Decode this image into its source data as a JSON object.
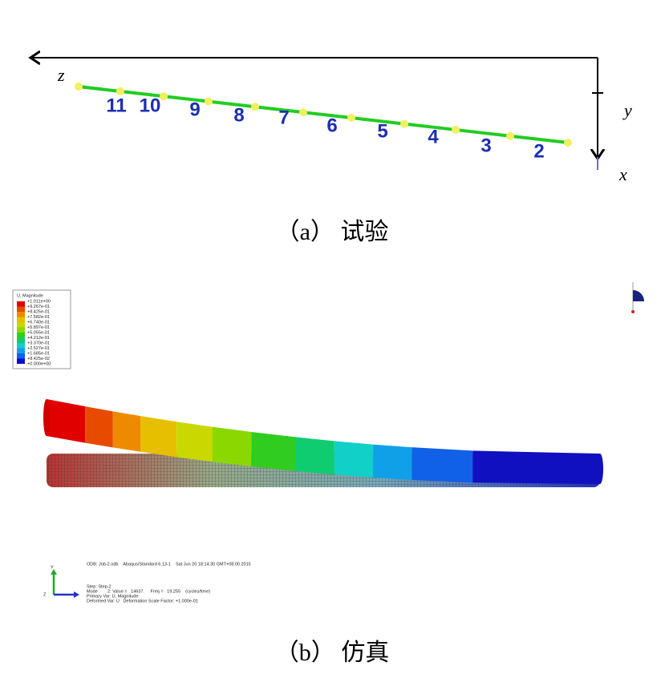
{
  "panel_a": {
    "axis_labels": [
      "z",
      "y",
      "x"
    ],
    "point_labels": [
      "11",
      "10",
      "9",
      "8",
      "7",
      "6",
      "5",
      "4",
      "3",
      "2"
    ],
    "caption": "（a） 试验"
  },
  "panel_b": {
    "legend": {
      "title": "U, Magnitude",
      "values": [
        "+1.011e+00",
        "+9.267e-01",
        "+8.425e-01",
        "+7.582e-01",
        "+6.740e-01",
        "+5.897e-01",
        "+5.055e-01",
        "+4.212e-01",
        "+3.370e-01",
        "+2.527e-01",
        "+1.685e-01",
        "+8.425e-02",
        "+0.000e+00"
      ]
    },
    "triad": [
      "Y",
      "Z"
    ],
    "info": [
      "ODB: Job-2.odb    Abaqus/Standard 6.13-1    Sat Jun 20 18:14:30 GMT+08:00 2015",
      "Step: Step-2",
      "Mode        2: Value =   14637.     Freq =   19.255    (cycles/time)",
      "Primary Var: U, Magnitude",
      "Deformed Var: U   Deformation Scale Factor: +1.000e-01"
    ],
    "caption": "（b） 仿真"
  }
}
